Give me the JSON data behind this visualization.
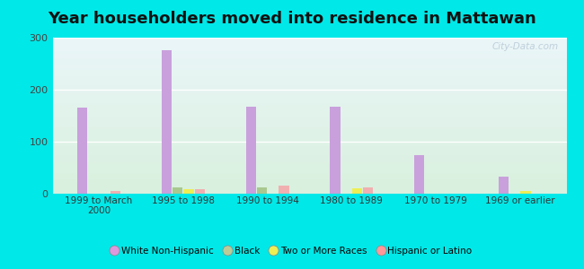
{
  "title": "Year householders moved into residence in Mattawan",
  "categories": [
    "1999 to March\n2000",
    "1995 to 1998",
    "1990 to 1994",
    "1980 to 1989",
    "1970 to 1979",
    "1969 or earlier"
  ],
  "series": {
    "White Non-Hispanic": [
      165,
      275,
      168,
      167,
      75,
      33
    ],
    "Black": [
      0,
      12,
      12,
      0,
      0,
      0
    ],
    "Two or More Races": [
      0,
      8,
      0,
      10,
      0,
      5
    ],
    "Hispanic or Latino": [
      5,
      8,
      15,
      12,
      0,
      0
    ]
  },
  "colors": {
    "White Non-Hispanic": "#c9a0dc",
    "Black": "#a8c890",
    "Two or More Races": "#eeee55",
    "Hispanic or Latino": "#f0b0b0"
  },
  "legend_colors": {
    "White Non-Hispanic": "#dd99dd",
    "Black": "#bbcc99",
    "Two or More Races": "#eeee55",
    "Hispanic or Latino": "#ff9999"
  },
  "ylim": [
    0,
    300
  ],
  "yticks": [
    0,
    100,
    200,
    300
  ],
  "bar_width": 0.13,
  "background_outer": "#00e8e8",
  "background_inner_top": "#eaf5f8",
  "background_inner_bottom": "#d8f0dd",
  "grid_color": "#ffffff",
  "title_fontsize": 13,
  "watermark": "City-Data.com"
}
